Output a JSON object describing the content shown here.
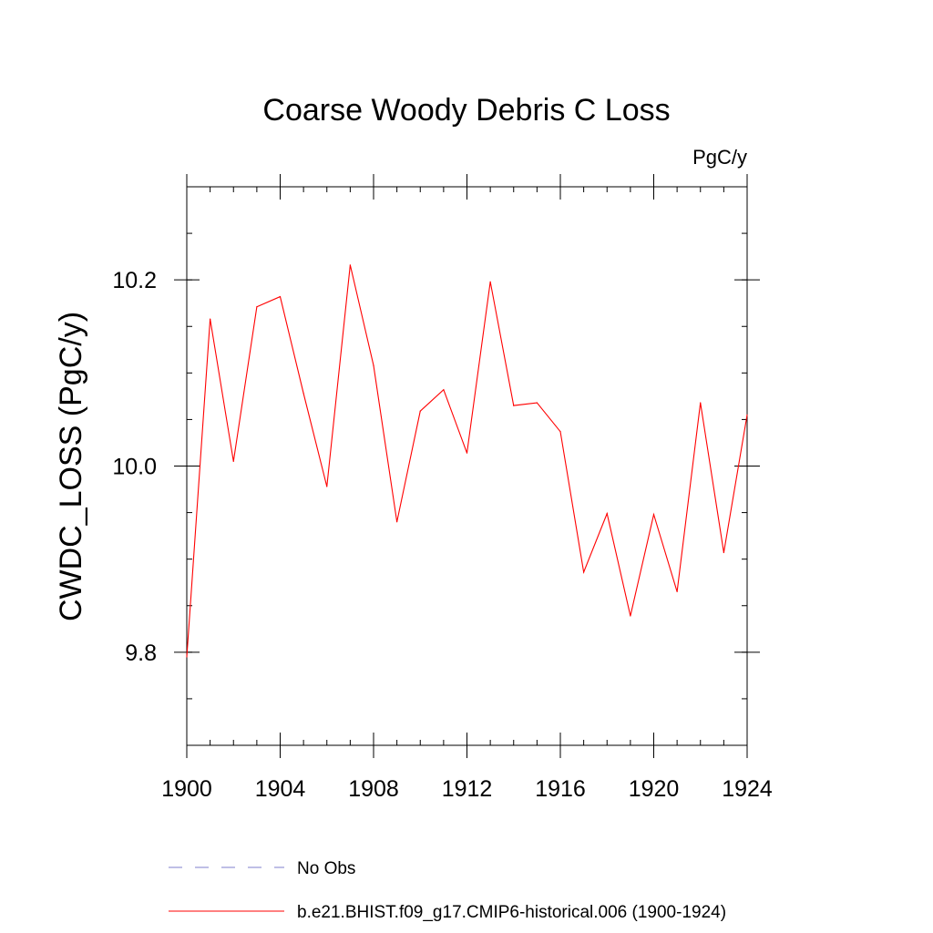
{
  "chart_data": {
    "type": "line",
    "title": "Coarse Woody Debris C Loss",
    "units": "PgC/y",
    "ylabel": "CWDC_LOSS  (PgC/y)",
    "xlabel": "",
    "xlim": [
      1900,
      1924
    ],
    "ylim": [
      9.7,
      10.3
    ],
    "x_ticks": [
      "1900",
      "1904",
      "1908",
      "1912",
      "1916",
      "1920",
      "1924"
    ],
    "y_ticks": [
      "9.8",
      "10.0",
      "10.2"
    ],
    "x_tick_values": [
      1900,
      1904,
      1908,
      1912,
      1916,
      1920,
      1924
    ],
    "y_tick_values": [
      9.8,
      10.0,
      10.2
    ],
    "x_minor_step": 1,
    "y_minor_step": 0.05,
    "grid": false,
    "legend": [
      {
        "label": "No Obs",
        "style": "dashed",
        "color": "#7f7fcc"
      },
      {
        "label": "b.e21.BHIST.f09_g17.CMIP6-historical.006 (1900-1924)",
        "style": "solid",
        "color": "#ff0000"
      }
    ],
    "series": [
      {
        "name": "b.e21.BHIST.f09_g17.CMIP6-historical.006 (1900-1924)",
        "color": "#ff0000",
        "x": [
          1900,
          1901,
          1902,
          1903,
          1904,
          1905,
          1906,
          1907,
          1908,
          1909,
          1910,
          1911,
          1912,
          1913,
          1914,
          1915,
          1916,
          1917,
          1918,
          1919,
          1920,
          1921,
          1922,
          1923,
          1924
        ],
        "values": [
          9.795,
          10.158,
          10.005,
          10.171,
          10.182,
          10.078,
          9.978,
          10.216,
          10.108,
          9.94,
          10.059,
          10.082,
          10.014,
          10.198,
          10.065,
          10.068,
          10.037,
          9.886,
          9.949,
          9.839,
          9.948,
          9.865,
          10.068,
          9.907,
          10.055
        ]
      }
    ]
  }
}
